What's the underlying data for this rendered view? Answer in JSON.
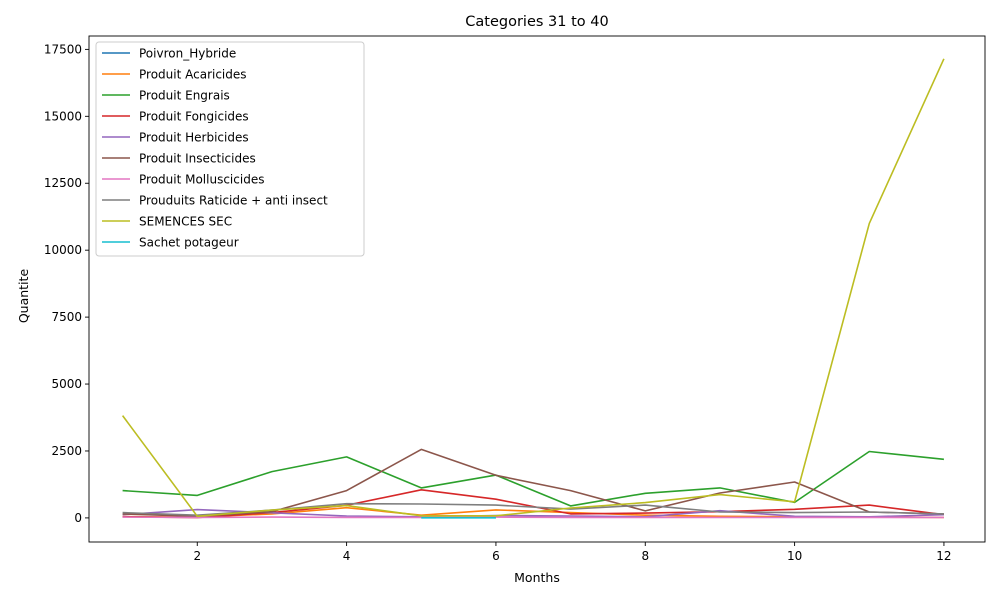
{
  "chart_data": {
    "type": "line",
    "title": "Categories 31 to 40",
    "xlabel": "Months",
    "ylabel": "Quantite",
    "xlim": [
      0.55,
      12.55
    ],
    "ylim": [
      -900,
      18000
    ],
    "xticks": [
      2,
      4,
      6,
      8,
      10,
      12
    ],
    "yticks": [
      0,
      2500,
      5000,
      7500,
      10000,
      12500,
      15000,
      17500
    ],
    "grid": false,
    "legend_position": "top-left",
    "series": [
      {
        "name": "Poivron_Hybride",
        "color": "#1f77b4",
        "x": [
          5,
          6
        ],
        "y": [
          10,
          10
        ]
      },
      {
        "name": "Produit Acaricides",
        "color": "#ff7f0e",
        "x": [
          1,
          2,
          3,
          4,
          5,
          6,
          7,
          8,
          9,
          10,
          11,
          12
        ],
        "y": [
          50,
          30,
          150,
          380,
          100,
          300,
          200,
          100,
          60,
          40,
          30,
          20
        ]
      },
      {
        "name": "Produit Engrais",
        "color": "#2ca02c",
        "x": [
          1,
          2,
          3,
          4,
          5,
          6,
          7,
          8,
          9,
          10,
          11,
          12
        ],
        "y": [
          1020,
          840,
          1730,
          2280,
          1120,
          1600,
          450,
          920,
          1120,
          580,
          2480,
          2190
        ]
      },
      {
        "name": "Produit Fongicides",
        "color": "#d62728",
        "x": [
          1,
          2,
          3,
          4,
          5,
          6,
          7,
          8,
          9,
          10,
          11,
          12
        ],
        "y": [
          40,
          10,
          200,
          470,
          1050,
          700,
          150,
          180,
          230,
          320,
          480,
          120
        ]
      },
      {
        "name": "Produit Herbicides",
        "color": "#9467bd",
        "x": [
          1,
          2,
          3,
          4,
          5,
          6,
          7,
          8,
          9,
          10,
          11,
          12
        ],
        "y": [
          120,
          310,
          190,
          70,
          40,
          90,
          70,
          40,
          270,
          60,
          40,
          120
        ]
      },
      {
        "name": "Produit Insecticides",
        "color": "#8c564b",
        "x": [
          1,
          2,
          3,
          4,
          5,
          6,
          7,
          8,
          9,
          10,
          11,
          12
        ],
        "y": [
          150,
          60,
          230,
          1020,
          2560,
          1590,
          1020,
          260,
          930,
          1340,
          220,
          150
        ]
      },
      {
        "name": "Produit Molluscicides",
        "color": "#e377c2",
        "x": [
          1,
          2,
          3,
          4,
          5,
          6,
          7,
          8,
          9,
          10,
          11,
          12
        ],
        "y": [
          30,
          20,
          30,
          20,
          20,
          30,
          20,
          20,
          20,
          20,
          20,
          20
        ]
      },
      {
        "name": "Prouduits Raticide + anti insect",
        "color": "#7f7f7f",
        "x": [
          1,
          2,
          3,
          4,
          5,
          6,
          7,
          8,
          9,
          10,
          11,
          12
        ],
        "y": [
          200,
          100,
          290,
          530,
          520,
          480,
          330,
          480,
          220,
          200,
          220,
          150
        ]
      },
      {
        "name": "SEMENCES SEC",
        "color": "#bcbd22",
        "x": [
          1,
          2,
          3,
          4,
          5,
          6,
          7,
          8,
          9,
          10,
          11,
          12
        ],
        "y": [
          3820,
          60,
          290,
          460,
          80,
          80,
          370,
          570,
          870,
          600,
          11000,
          17150
        ]
      },
      {
        "name": "Sachet potageur",
        "color": "#17becf",
        "x": [
          5,
          6
        ],
        "y": [
          5,
          5
        ]
      }
    ]
  }
}
